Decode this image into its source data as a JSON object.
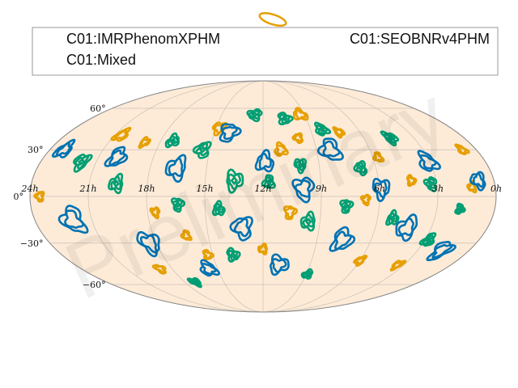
{
  "chart_data": {
    "type": "contour",
    "projection": "mollweide",
    "background": "#fdebd8",
    "grid": true,
    "legend_placement": "top",
    "legend": [
      {
        "label": "C01:IMRPhenomXPHM",
        "color": "#0072b2"
      },
      {
        "label": "C01:SEOBNRv4PHM",
        "color": "#e69f00"
      },
      {
        "label": "C01:Mixed",
        "color": "#009e73"
      }
    ],
    "dec_ticks": [
      {
        "value": 60,
        "label": "60°"
      },
      {
        "value": 30,
        "label": "30°"
      },
      {
        "value": 0,
        "label": "0°"
      },
      {
        "value": -30,
        "label": "−30°"
      },
      {
        "value": -60,
        "label": "−60°"
      }
    ],
    "ra_ticks": [
      {
        "hours": 24,
        "label": "24h"
      },
      {
        "hours": 21,
        "label": "21h"
      },
      {
        "hours": 18,
        "label": "18h"
      },
      {
        "hours": 15,
        "label": "15h"
      },
      {
        "hours": 12,
        "label": "12h"
      },
      {
        "hours": 9,
        "label": "9h"
      },
      {
        "hours": 6,
        "label": "6h"
      },
      {
        "hours": 3,
        "label": "3h"
      },
      {
        "hours": 0,
        "label": "0h"
      }
    ],
    "watermark": "Preliminary",
    "series": [
      {
        "name": "C01:Mixed",
        "color": "#009e73",
        "regions": [
          {
            "ra": 21.8,
            "dec": 22,
            "r": 5
          },
          {
            "ra": 19.6,
            "dec": 8,
            "r": 5
          },
          {
            "ra": 17.3,
            "dec": 36,
            "r": 4
          },
          {
            "ra": 16.4,
            "dec": -5,
            "r": 4
          },
          {
            "ra": 15.4,
            "dec": 30,
            "r": 5
          },
          {
            "ra": 14.3,
            "dec": -8,
            "r": 4
          },
          {
            "ra": 13.5,
            "dec": 10,
            "r": 6
          },
          {
            "ra": 12.6,
            "dec": 55,
            "r": 4
          },
          {
            "ra": 11.7,
            "dec": 9,
            "r": 4
          },
          {
            "ra": 10.5,
            "dec": 52,
            "r": 4
          },
          {
            "ra": 10.0,
            "dec": 20,
            "r": 4
          },
          {
            "ra": 9.6,
            "dec": -16,
            "r": 5
          },
          {
            "ra": 8.3,
            "dec": 44,
            "r": 4
          },
          {
            "ra": 7.7,
            "dec": -6,
            "r": 4
          },
          {
            "ra": 6.8,
            "dec": 18,
            "r": 4
          },
          {
            "ra": 5.2,
            "dec": -14,
            "r": 4
          },
          {
            "ra": 4.4,
            "dec": 38,
            "r": 4
          },
          {
            "ra": 3.3,
            "dec": 8,
            "r": 4
          },
          {
            "ra": 2.8,
            "dec": -28,
            "r": 4
          },
          {
            "ra": 13.8,
            "dec": -38,
            "r": 4
          },
          {
            "ra": 17.2,
            "dec": -58,
            "r": 3
          },
          {
            "ra": 8.9,
            "dec": -52,
            "r": 3
          },
          {
            "ra": 1.8,
            "dec": -8,
            "r": 3
          }
        ]
      },
      {
        "name": "C01:SEOBNRv4PHM",
        "color": "#e69f00",
        "regions": [
          {
            "ra": 23.5,
            "dec": 0,
            "r": 3
          },
          {
            "ra": 20.6,
            "dec": 40,
            "r": 4
          },
          {
            "ra": 18.9,
            "dec": 35,
            "r": 3
          },
          {
            "ra": 17.6,
            "dec": -10,
            "r": 3
          },
          {
            "ra": 16.2,
            "dec": -25,
            "r": 3
          },
          {
            "ra": 15.3,
            "dec": -38,
            "r": 3
          },
          {
            "ra": 14.8,
            "dec": 45,
            "r": 4
          },
          {
            "ra": 12.0,
            "dec": -34,
            "r": 3
          },
          {
            "ra": 11.0,
            "dec": 30,
            "r": 4
          },
          {
            "ra": 10.6,
            "dec": -10,
            "r": 4
          },
          {
            "ra": 9.9,
            "dec": 38,
            "r": 3
          },
          {
            "ra": 9.3,
            "dec": 55,
            "r": 4
          },
          {
            "ra": 7.3,
            "dec": 42,
            "r": 3
          },
          {
            "ra": 6.7,
            "dec": -2,
            "r": 3
          },
          {
            "ra": 5.7,
            "dec": 25,
            "r": 3
          },
          {
            "ra": 4.3,
            "dec": 10,
            "r": 3
          },
          {
            "ra": 3.4,
            "dec": -45,
            "r": 3
          },
          {
            "ra": 1.2,
            "dec": 6,
            "r": 3
          },
          {
            "ra": 0.8,
            "dec": 30,
            "r": 3
          },
          {
            "ra": 18.8,
            "dec": -48,
            "r": 3
          },
          {
            "ra": 6.0,
            "dec": -42,
            "r": 3
          }
        ]
      },
      {
        "name": "C01:IMRPhenomXPHM",
        "color": "#0072b2",
        "regions": [
          {
            "ra": 22.0,
            "dec": -15,
            "r": 8
          },
          {
            "ra": 20.0,
            "dec": 25,
            "r": 6
          },
          {
            "ra": 18.4,
            "dec": -30,
            "r": 7
          },
          {
            "ra": 16.6,
            "dec": 18,
            "r": 7
          },
          {
            "ra": 15.6,
            "dec": -48,
            "r": 5
          },
          {
            "ra": 14.1,
            "dec": 42,
            "r": 6
          },
          {
            "ra": 13.1,
            "dec": -20,
            "r": 7
          },
          {
            "ra": 11.9,
            "dec": 22,
            "r": 6
          },
          {
            "ra": 11.0,
            "dec": -45,
            "r": 6
          },
          {
            "ra": 9.9,
            "dec": 5,
            "r": 7
          },
          {
            "ra": 8.2,
            "dec": 30,
            "r": 7
          },
          {
            "ra": 7.6,
            "dec": -28,
            "r": 7
          },
          {
            "ra": 5.9,
            "dec": 5,
            "r": 6
          },
          {
            "ra": 4.3,
            "dec": -20,
            "r": 7
          },
          {
            "ra": 3.1,
            "dec": 22,
            "r": 6
          },
          {
            "ra": 1.6,
            "dec": -35,
            "r": 6
          },
          {
            "ra": 0.8,
            "dec": 10,
            "r": 5
          },
          {
            "ra": 23.2,
            "dec": 30,
            "r": 5
          }
        ]
      }
    ]
  }
}
